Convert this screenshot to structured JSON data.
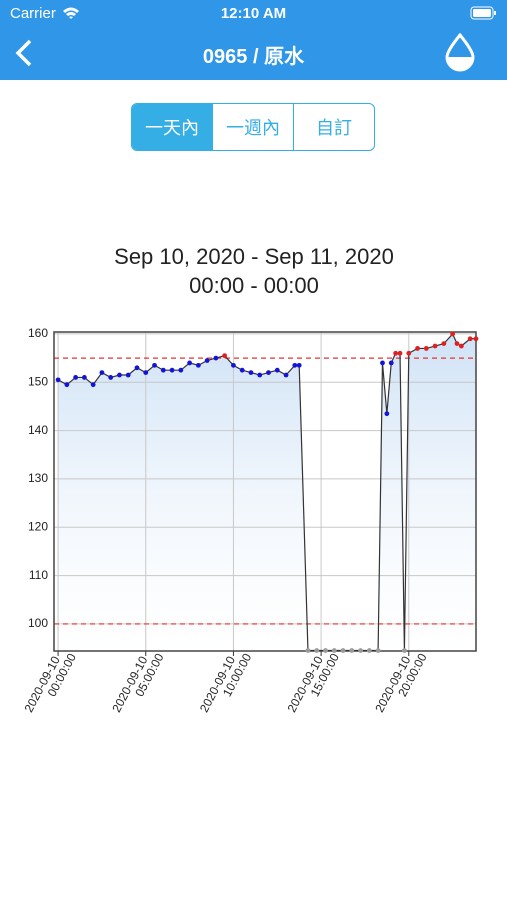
{
  "status_bar": {
    "carrier": "Carrier",
    "time": "12:10 AM"
  },
  "nav": {
    "title": "0965 / 原水"
  },
  "segments": {
    "items": [
      "一天內",
      "一週內",
      "自訂"
    ],
    "selected": 0
  },
  "chart_data": {
    "type": "line",
    "title": "Sep 10, 2020 - Sep 11, 2020",
    "subtitle": "00:00 - 00:00",
    "x": [
      "2020-09-10 00:00:00",
      "2020-09-10 00:30:00",
      "2020-09-10 01:00:00",
      "2020-09-10 01:30:00",
      "2020-09-10 02:00:00",
      "2020-09-10 02:30:00",
      "2020-09-10 03:00:00",
      "2020-09-10 03:30:00",
      "2020-09-10 04:00:00",
      "2020-09-10 04:30:00",
      "2020-09-10 05:00:00",
      "2020-09-10 05:30:00",
      "2020-09-10 06:00:00",
      "2020-09-10 06:30:00",
      "2020-09-10 07:00:00",
      "2020-09-10 07:30:00",
      "2020-09-10 08:00:00",
      "2020-09-10 08:30:00",
      "2020-09-10 09:00:00",
      "2020-09-10 09:30:00",
      "2020-09-10 10:00:00",
      "2020-09-10 10:30:00",
      "2020-09-10 11:00:00",
      "2020-09-10 11:30:00",
      "2020-09-10 12:00:00",
      "2020-09-10 12:30:00",
      "2020-09-10 13:00:00",
      "2020-09-10 13:30:00",
      "2020-09-10 13:45:00",
      "2020-09-10 14:15:00",
      "2020-09-10 14:45:00",
      "2020-09-10 15:15:00",
      "2020-09-10 15:45:00",
      "2020-09-10 16:15:00",
      "2020-09-10 16:45:00",
      "2020-09-10 17:15:00",
      "2020-09-10 17:45:00",
      "2020-09-10 18:15:00",
      "2020-09-10 18:30:00",
      "2020-09-10 18:45:00",
      "2020-09-10 19:00:00",
      "2020-09-10 19:15:00",
      "2020-09-10 19:30:00",
      "2020-09-10 19:45:00",
      "2020-09-10 20:00:00",
      "2020-09-10 20:30:00",
      "2020-09-10 21:00:00",
      "2020-09-10 21:30:00",
      "2020-09-10 22:00:00",
      "2020-09-10 22:30:00",
      "2020-09-10 22:45:00",
      "2020-09-10 23:00:00",
      "2020-09-10 23:30:00",
      "2020-09-10 23:50:00"
    ],
    "series": [
      {
        "color": "#333333",
        "values": [
          150.5,
          149.5,
          151,
          151,
          149.5,
          152,
          151,
          151.5,
          151.5,
          153,
          152,
          153.5,
          152.5,
          152.5,
          152.5,
          154,
          153.5,
          154.5,
          155,
          155.5,
          153.5,
          152.5,
          152,
          151.5,
          152,
          152.5,
          151.5,
          153.5,
          153.5,
          94.5,
          94.5,
          94.5,
          94.5,
          94.5,
          94.5,
          94.5,
          94.5,
          94.5,
          154,
          143.5,
          154,
          156,
          156,
          94.5,
          156,
          157,
          157,
          157.5,
          158,
          160,
          158,
          157.5,
          159,
          159
        ]
      }
    ],
    "thresholds": [
      100,
      155
    ],
    "threshold_color": "#e8332e",
    "point_colors": {
      "low": "#9a9a9a",
      "normal": "#1414d8",
      "high": "#e02020"
    },
    "area_color": "#cfe2f6",
    "xlim": [
      "2020-09-09 23:46:00",
      "2020-09-10 23:50:00"
    ],
    "xticks": [
      {
        "value": "2020-09-10 00:00:00",
        "label": [
          "2020-09-10",
          "00:00:00"
        ]
      },
      {
        "value": "2020-09-10 05:00:00",
        "label": [
          "2020-09-10",
          "05:00:00"
        ]
      },
      {
        "value": "2020-09-10 10:00:00",
        "label": [
          "2020-09-10",
          "10:00:00"
        ]
      },
      {
        "value": "2020-09-10 15:00:00",
        "label": [
          "2020-09-10",
          "15:00:00"
        ]
      },
      {
        "value": "2020-09-10 20:00:00",
        "label": [
          "2020-09-10",
          "20:00:00"
        ]
      }
    ],
    "ylim": [
      94.4,
      160.4
    ],
    "yticks": [
      100,
      110,
      120,
      130,
      140,
      150,
      160
    ],
    "grid": true
  }
}
